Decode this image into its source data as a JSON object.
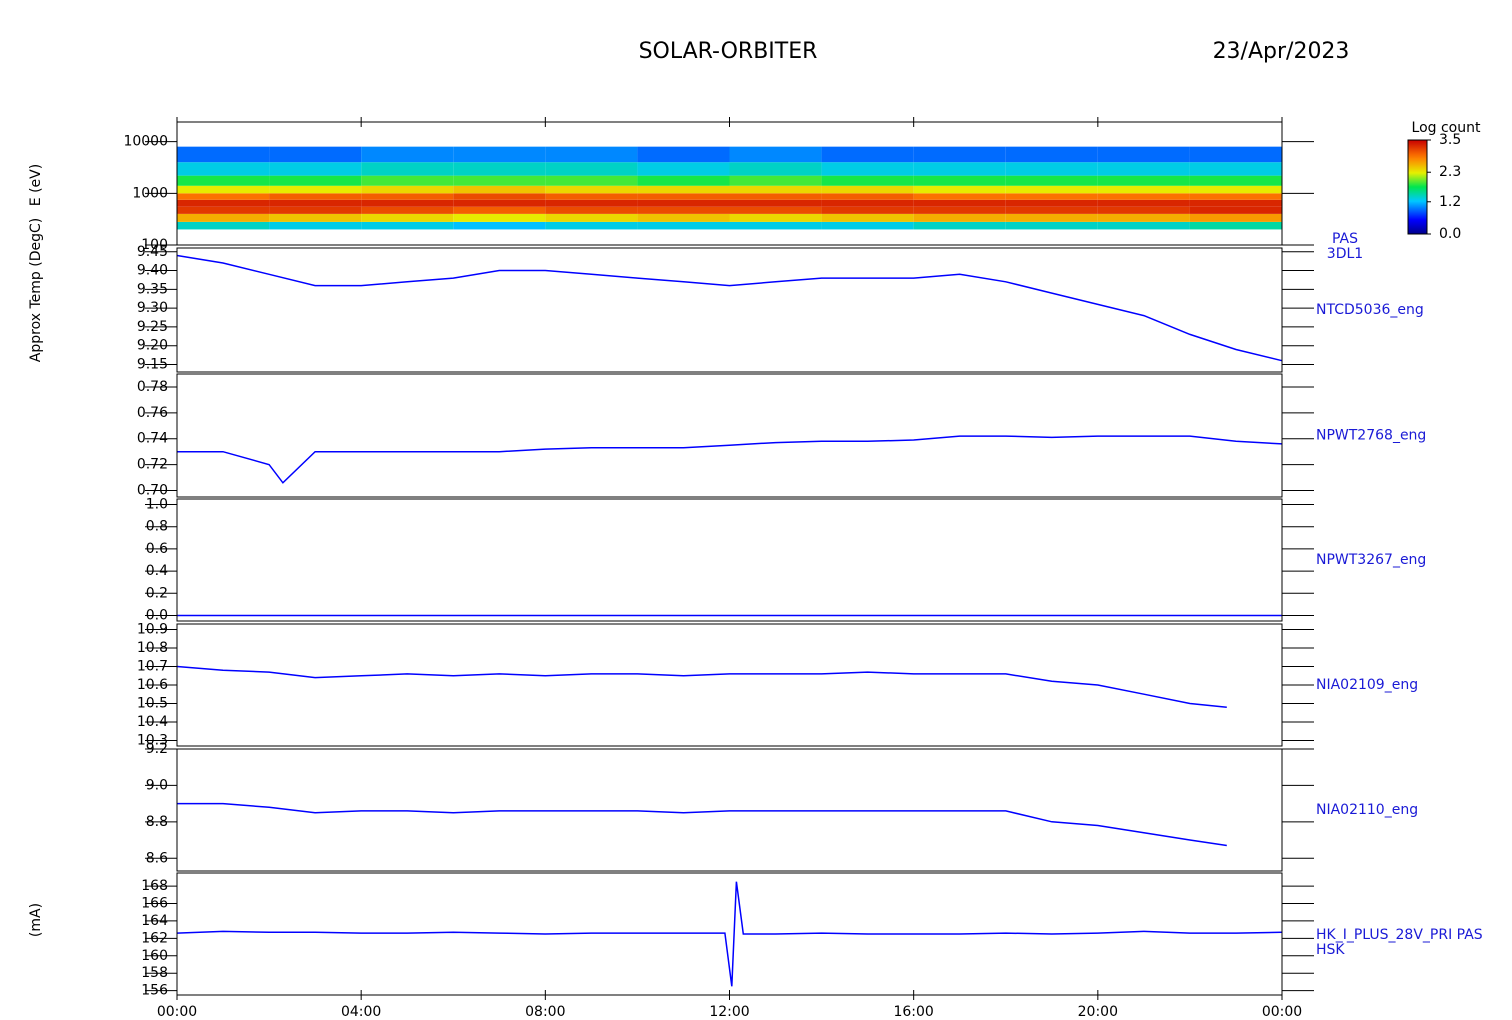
{
  "header": {
    "title": "SOLAR-ORBITER",
    "date": "23/Apr/2023"
  },
  "chart_data": [
    {
      "type": "heatmap",
      "ylabel": "E (eV)",
      "label": [
        "PAS",
        "3DL1"
      ],
      "colormap": "rainbow",
      "log_y": true,
      "xbins": [
        0,
        2,
        4,
        6,
        8,
        10,
        12,
        14,
        16,
        18,
        20,
        22,
        24
      ],
      "bins": [
        200,
        280,
        400,
        550,
        750,
        1000,
        1400,
        2200,
        4000,
        8000
      ],
      "values": [
        [
          1.4,
          2.6,
          3.2,
          3.3,
          2.9,
          2.3,
          1.8,
          1.3,
          0.9
        ],
        [
          1.3,
          2.5,
          3.2,
          3.3,
          3.0,
          2.3,
          1.8,
          1.3,
          0.9
        ],
        [
          1.3,
          2.4,
          3.1,
          3.3,
          3.0,
          2.4,
          1.9,
          1.4,
          1.0
        ],
        [
          1.2,
          2.3,
          3.0,
          3.3,
          3.1,
          2.5,
          1.9,
          1.4,
          1.0
        ],
        [
          1.3,
          2.4,
          3.1,
          3.3,
          3.0,
          2.4,
          1.9,
          1.4,
          1.0
        ],
        [
          1.3,
          2.5,
          3.1,
          3.3,
          3.0,
          2.4,
          1.8,
          1.3,
          0.9
        ],
        [
          1.3,
          2.4,
          3.1,
          3.3,
          3.0,
          2.4,
          1.9,
          1.4,
          1.0
        ],
        [
          1.3,
          2.5,
          3.2,
          3.3,
          3.0,
          2.4,
          1.8,
          1.3,
          0.9
        ],
        [
          1.4,
          2.6,
          3.2,
          3.3,
          2.9,
          2.3,
          1.8,
          1.3,
          0.9
        ],
        [
          1.4,
          2.6,
          3.2,
          3.3,
          2.9,
          2.3,
          1.8,
          1.3,
          0.9
        ],
        [
          1.4,
          2.6,
          3.2,
          3.3,
          2.9,
          2.3,
          1.8,
          1.3,
          0.9
        ],
        [
          1.5,
          2.7,
          3.3,
          3.3,
          2.9,
          2.3,
          1.8,
          1.3,
          0.9
        ]
      ],
      "xlim": [
        0,
        24
      ],
      "ylim": [
        100,
        24000
      ],
      "yticks": [
        100,
        1000,
        10000
      ],
      "colorbar_label": "Log count",
      "zlim": [
        0,
        3.5
      ],
      "zticks": [
        {
          "value": 0,
          "label": "0.0"
        },
        1.2,
        2.3,
        3.5
      ]
    },
    {
      "type": "line",
      "ylabel": "Approx Temp (DegC)",
      "label": "NTCD5036_eng",
      "color": "#0000ff",
      "x": [
        0,
        1,
        2,
        3,
        4,
        5,
        6,
        7,
        8,
        9,
        10,
        11,
        12,
        13,
        14,
        15,
        16,
        17,
        18,
        19,
        20,
        21,
        22,
        23,
        24
      ],
      "values": [
        9.44,
        9.42,
        9.39,
        9.36,
        9.36,
        9.37,
        9.38,
        9.4,
        9.4,
        9.39,
        9.38,
        9.37,
        9.36,
        9.37,
        9.38,
        9.38,
        9.38,
        9.39,
        9.37,
        9.34,
        9.31,
        9.28,
        9.23,
        9.19,
        9.16
      ],
      "xlim": [
        0,
        24
      ],
      "ylim": [
        9.13,
        9.46
      ],
      "yticks": [
        9.15,
        {
          "value": 9.2,
          "label": "9.20"
        },
        9.25,
        {
          "value": 9.3,
          "label": "9.30"
        },
        9.35,
        {
          "value": 9.4,
          "label": "9.40"
        },
        9.45
      ]
    },
    {
      "type": "line",
      "label": "NPWT2768_eng",
      "color": "#0000ff",
      "x": [
        0,
        1,
        2,
        2.3,
        3,
        4,
        5,
        6,
        7,
        8,
        9,
        10,
        11,
        12,
        13,
        14,
        15,
        16,
        17,
        18,
        19,
        20,
        21,
        22,
        23,
        24
      ],
      "values": [
        0.73,
        0.73,
        0.72,
        0.706,
        0.73,
        0.73,
        0.73,
        0.73,
        0.73,
        0.732,
        0.733,
        0.733,
        0.733,
        0.735,
        0.737,
        0.738,
        0.738,
        0.739,
        0.742,
        0.742,
        0.741,
        0.742,
        0.742,
        0.742,
        0.738,
        0.736
      ],
      "xlim": [
        0,
        24
      ],
      "ylim": [
        0.695,
        0.79
      ],
      "yticks": [
        {
          "value": 0.7,
          "label": "0.70"
        },
        0.72,
        0.74,
        0.76,
        0.78
      ]
    },
    {
      "type": "line",
      "label": "NPWT3267_eng",
      "color": "#0000ff",
      "x": [
        0,
        24
      ],
      "values": [
        0,
        0
      ],
      "xlim": [
        0,
        24
      ],
      "ylim": [
        -0.05,
        1.05
      ],
      "yticks": [
        {
          "value": 0,
          "label": "0.0"
        },
        0.2,
        0.4,
        0.6,
        0.8,
        {
          "value": 1,
          "label": "1.0"
        }
      ]
    },
    {
      "type": "line",
      "label": "NIA02109_eng",
      "color": "#0000ff",
      "x": [
        0,
        1,
        2,
        3,
        4,
        5,
        6,
        7,
        8,
        9,
        10,
        11,
        12,
        13,
        14,
        15,
        16,
        17,
        18,
        19,
        20,
        21,
        22,
        22.8,
        24
      ],
      "values": [
        10.7,
        10.68,
        10.67,
        10.64,
        10.65,
        10.66,
        10.65,
        10.66,
        10.65,
        10.66,
        10.66,
        10.65,
        10.66,
        10.66,
        10.66,
        10.67,
        10.66,
        10.66,
        10.66,
        10.62,
        10.6,
        10.55,
        10.5,
        10.48,
        null
      ],
      "xlim": [
        0,
        24
      ],
      "ylim": [
        10.27,
        10.93
      ],
      "yticks": [
        10.3,
        10.4,
        10.5,
        10.6,
        10.7,
        10.8,
        10.9
      ]
    },
    {
      "type": "line",
      "label": "NIA02110_eng",
      "color": "#0000ff",
      "x": [
        0,
        1,
        2,
        3,
        4,
        5,
        6,
        7,
        8,
        9,
        10,
        11,
        12,
        13,
        14,
        15,
        16,
        17,
        18,
        19,
        20,
        21,
        22,
        22.8,
        24
      ],
      "values": [
        8.9,
        8.9,
        8.88,
        8.85,
        8.86,
        8.86,
        8.85,
        8.86,
        8.86,
        8.86,
        8.86,
        8.85,
        8.86,
        8.86,
        8.86,
        8.86,
        8.86,
        8.86,
        8.86,
        8.8,
        8.78,
        8.74,
        8.7,
        8.67,
        null
      ],
      "xlim": [
        0,
        24
      ],
      "ylim": [
        8.53,
        9.2
      ],
      "yticks": [
        8.6,
        8.8,
        {
          "value": 9,
          "label": "9.0"
        },
        9.2
      ]
    },
    {
      "type": "line",
      "ylabel": "(mA)",
      "label": [
        "HK_I_PLUS_28V_PRI PAS",
        "HSK"
      ],
      "color": "#0000ff",
      "x": [
        0,
        1,
        2,
        3,
        4,
        5,
        6,
        7,
        8,
        9,
        10,
        11,
        11.9,
        12.05,
        12.15,
        12.3,
        13,
        14,
        15,
        16,
        17,
        18,
        19,
        20,
        21,
        22,
        23,
        24
      ],
      "values": [
        162.6,
        162.8,
        162.7,
        162.7,
        162.6,
        162.6,
        162.7,
        162.6,
        162.5,
        162.6,
        162.6,
        162.6,
        162.6,
        156.5,
        168.5,
        162.5,
        162.5,
        162.6,
        162.5,
        162.5,
        162.5,
        162.6,
        162.5,
        162.6,
        162.8,
        162.6,
        162.6,
        162.7
      ],
      "xlim": [
        0,
        24
      ],
      "ylim": [
        155.5,
        169.5
      ],
      "yticks": [
        156,
        158,
        160,
        162,
        164,
        166,
        168
      ],
      "xticks": [
        {
          "value": 0,
          "label": "00:00"
        },
        {
          "value": 4,
          "label": "04:00"
        },
        {
          "value": 8,
          "label": "08:00"
        },
        {
          "value": 12,
          "label": "12:00"
        },
        {
          "value": 16,
          "label": "16:00"
        },
        {
          "value": 20,
          "label": "20:00"
        },
        {
          "value": 24,
          "label": "00:00"
        }
      ]
    }
  ]
}
